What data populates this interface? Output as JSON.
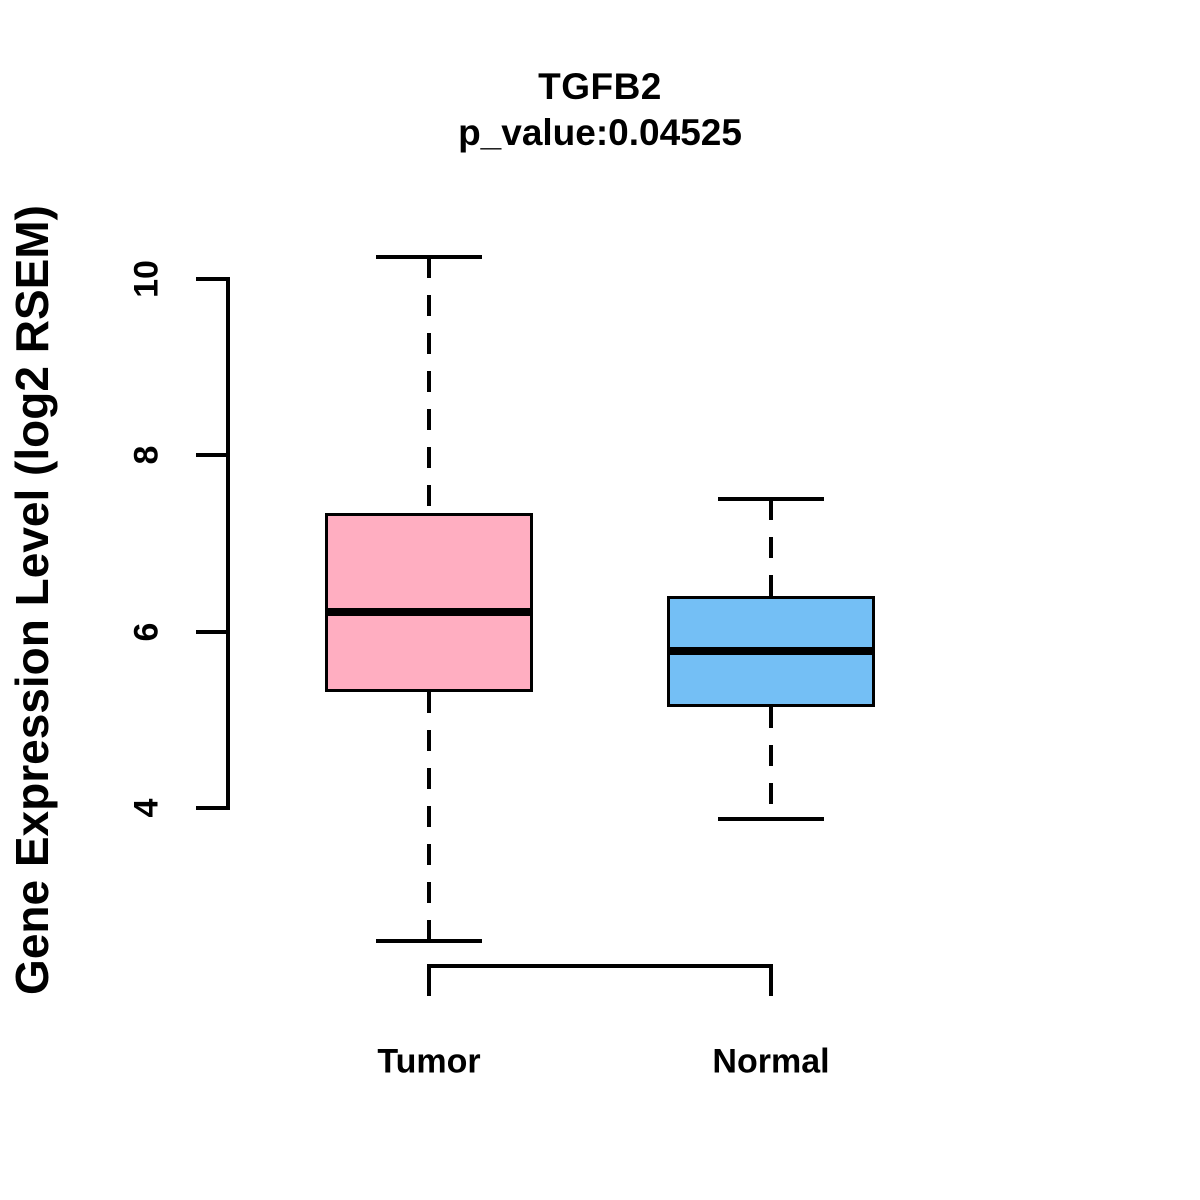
{
  "chart_data": {
    "type": "boxplot",
    "title": "TGFB2",
    "subtitle": "p_value:0.04525",
    "ylabel": "Gene Expression Level (log2 RSEM)",
    "xlabel": "",
    "y_ticks": [
      4,
      6,
      8,
      10
    ],
    "ylim": [
      2.0,
      10.5
    ],
    "grid": "off",
    "legend": "none",
    "categories": [
      "Tumor",
      "Normal"
    ],
    "series": [
      {
        "name": "Tumor",
        "color": "#FFAEC1",
        "whisker_low": 2.49,
        "q1": 5.32,
        "median": 6.22,
        "q3": 7.35,
        "whisker_high": 10.25
      },
      {
        "name": "Normal",
        "color": "#74BFF5",
        "whisker_low": 3.88,
        "q1": 5.15,
        "median": 5.78,
        "q3": 6.41,
        "whisker_high": 7.51
      }
    ]
  }
}
